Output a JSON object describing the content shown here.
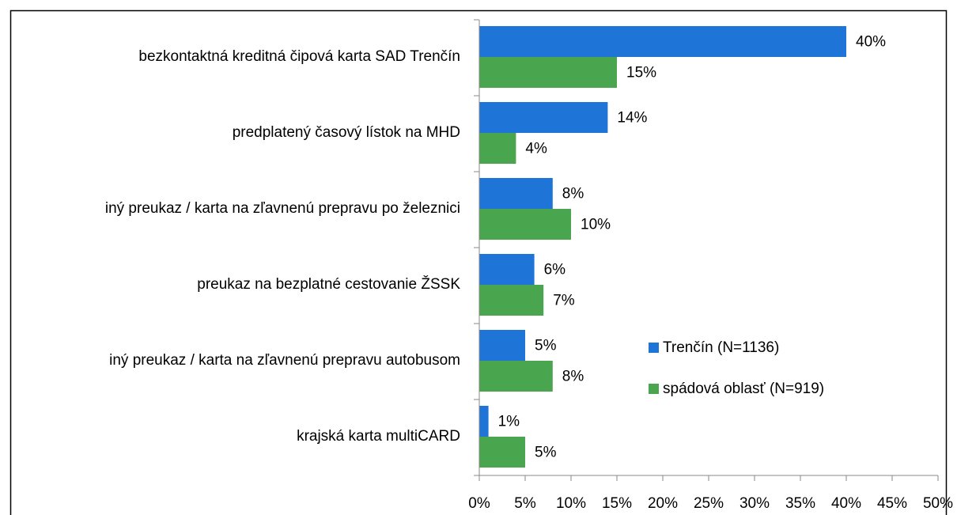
{
  "chart_data": {
    "type": "hbar",
    "categories": [
      "bezkontaktná kreditná čipová karta SAD Trenčín",
      "predplatený časový lístok na MHD",
      "iný preukaz / karta na zľavnenú prepravu po železnici",
      "preukaz na bezplatné cestovanie ŽSSK",
      "iný preukaz / karta na zľavnenú prepravu autobusom",
      "krajská karta multiCARD"
    ],
    "series": [
      {
        "name": "Trenčín (N=1136)",
        "color": "#1f74d8",
        "values": [
          40,
          14,
          8,
          6,
          5,
          1
        ],
        "value_labels": [
          "40%",
          "14%",
          "8%",
          "6%",
          "5%",
          "1%"
        ]
      },
      {
        "name": "spádová oblasť (N=919)",
        "color": "#4aa64e",
        "values": [
          15,
          4,
          10,
          7,
          8,
          5
        ],
        "value_labels": [
          "15%",
          "4%",
          "10%",
          "7%",
          "8%",
          "5%"
        ]
      }
    ],
    "xlim": [
      0,
      50
    ],
    "xticks": [
      {
        "value": 0,
        "label": "0%"
      },
      {
        "value": 5,
        "label": "5%"
      },
      {
        "value": 10,
        "label": "10%"
      },
      {
        "value": 15,
        "label": "15%"
      },
      {
        "value": 20,
        "label": "20%"
      },
      {
        "value": 25,
        "label": "25%"
      },
      {
        "value": 30,
        "label": "30%"
      },
      {
        "value": 35,
        "label": "35%"
      },
      {
        "value": 40,
        "label": "40%"
      },
      {
        "value": 45,
        "label": "45%"
      },
      {
        "value": 50,
        "label": "50%"
      }
    ],
    "legend": "right"
  }
}
